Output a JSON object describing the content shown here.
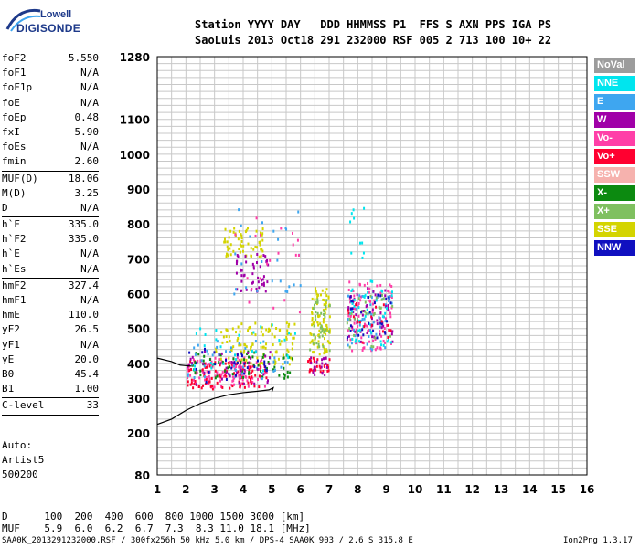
{
  "logo": {
    "line1": "Lowell",
    "line2": "DIGISONDE"
  },
  "header": {
    "line1": "Station YYYY DAY   DDD HHMMSS P1  FFS S AXN PPS IGA PS",
    "line2": "SaoLuis 2013 Oct18 291 232000 RSF 005 2 713 100 10+ 22"
  },
  "params": [
    [
      {
        "k": "foF2",
        "v": "5.550"
      },
      {
        "k": "foF1",
        "v": "N/A"
      },
      {
        "k": "foF1p",
        "v": "N/A"
      },
      {
        "k": "foE",
        "v": "N/A"
      },
      {
        "k": "foEp",
        "v": "0.48"
      },
      {
        "k": "fxI",
        "v": "5.90"
      },
      {
        "k": "foEs",
        "v": "N/A"
      },
      {
        "k": "fmin",
        "v": "2.60"
      }
    ],
    [
      {
        "k": "MUF(D)",
        "v": "18.06"
      },
      {
        "k": "M(D)",
        "v": "3.25"
      },
      {
        "k": "D",
        "v": "N/A"
      }
    ],
    [
      {
        "k": "h`F",
        "v": "335.0"
      },
      {
        "k": "h`F2",
        "v": "335.0"
      },
      {
        "k": "h`E",
        "v": "N/A"
      },
      {
        "k": "h`Es",
        "v": "N/A"
      }
    ],
    [
      {
        "k": "hmF2",
        "v": "327.4"
      },
      {
        "k": "hmF1",
        "v": "N/A"
      },
      {
        "k": "hmE",
        "v": "110.0"
      },
      {
        "k": "yF2",
        "v": "26.5"
      },
      {
        "k": "yF1",
        "v": "N/A"
      },
      {
        "k": "yE",
        "v": "20.0"
      },
      {
        "k": "B0",
        "v": "45.4"
      },
      {
        "k": "B1",
        "v": "1.00"
      }
    ],
    [
      {
        "k": "C-level",
        "v": "33"
      }
    ]
  ],
  "auto": {
    "l1": "Auto:",
    "l2": "Artist5",
    "l3": "500200"
  },
  "muf_table": {
    "row_d": "D      100  200  400  600  800 1000 1500 3000 [km]",
    "row_muf": "MUF    5.9  6.0  6.2  6.7  7.3  8.3 11.0 18.1 [MHz]"
  },
  "footer": {
    "left": "SAA0K_2013291232000.RSF / 300fx256h 50 kHz 5.0 km / DPS-4 SAA0K 903 / 2.6 S 315.8 E",
    "right": "Ion2Png 1.3.17"
  },
  "legend": [
    {
      "label": "NoVal",
      "color": "#9c9c9c"
    },
    {
      "label": "NNE",
      "color": "#00e5ee"
    },
    {
      "label": "E",
      "color": "#3ea6f0"
    },
    {
      "label": "W",
      "color": "#a000a8"
    },
    {
      "label": "Vo-",
      "color": "#ff3fa8"
    },
    {
      "label": "Vo+",
      "color": "#ff0030"
    },
    {
      "label": "SSW",
      "color": "#f6b2ae"
    },
    {
      "label": "X-",
      "color": "#0c8a10"
    },
    {
      "label": "X+",
      "color": "#7fc060"
    },
    {
      "label": "SSE",
      "color": "#d4d400"
    },
    {
      "label": "NNW",
      "color": "#1010c0"
    }
  ],
  "chart_data": {
    "type": "scatter",
    "xlabel": "",
    "ylabel": "",
    "xlim": [
      1,
      16
    ],
    "ylim": [
      80,
      1280
    ],
    "xticks": [
      1,
      2,
      3,
      4,
      5,
      6,
      7,
      8,
      9,
      10,
      11,
      12,
      13,
      14,
      15,
      16
    ],
    "yticks": [
      80,
      200,
      300,
      400,
      500,
      600,
      700,
      800,
      900,
      1000,
      1100,
      1280
    ],
    "grid": true,
    "legend_position": "right",
    "clusters": [
      {
        "series": "Vo-",
        "x": [
          2.0,
          4.8
        ],
        "y": [
          335,
          420
        ],
        "n": 120
      },
      {
        "series": "Vo+",
        "x": [
          2.0,
          4.8
        ],
        "y": [
          330,
          410
        ],
        "n": 90
      },
      {
        "series": "SSE",
        "x": [
          3.0,
          5.8
        ],
        "y": [
          400,
          520
        ],
        "n": 110
      },
      {
        "series": "X-",
        "x": [
          2.2,
          5.8
        ],
        "y": [
          360,
          440
        ],
        "n": 60
      },
      {
        "series": "E",
        "x": [
          2.0,
          5.6
        ],
        "y": [
          360,
          480
        ],
        "n": 40
      },
      {
        "series": "NNE",
        "x": [
          2.2,
          5.8
        ],
        "y": [
          380,
          520
        ],
        "n": 30
      },
      {
        "series": "W",
        "x": [
          2.0,
          5.0
        ],
        "y": [
          340,
          440
        ],
        "n": 40
      },
      {
        "series": "NNW",
        "x": [
          2.0,
          5.0
        ],
        "y": [
          350,
          450
        ],
        "n": 30
      },
      {
        "series": "SSE",
        "x": [
          3.3,
          4.7
        ],
        "y": [
          705,
          795
        ],
        "n": 60
      },
      {
        "series": "W",
        "x": [
          3.7,
          4.9
        ],
        "y": [
          610,
          720
        ],
        "n": 50
      },
      {
        "series": "SSE",
        "x": [
          6.3,
          7.0
        ],
        "y": [
          430,
          620
        ],
        "n": 90
      },
      {
        "series": "X+",
        "x": [
          6.3,
          7.0
        ],
        "y": [
          440,
          600
        ],
        "n": 40
      },
      {
        "series": "Vo+",
        "x": [
          6.2,
          7.0
        ],
        "y": [
          380,
          420
        ],
        "n": 30
      },
      {
        "series": "W",
        "x": [
          6.2,
          7.0
        ],
        "y": [
          370,
          420
        ],
        "n": 20
      },
      {
        "series": "Vo-",
        "x": [
          7.6,
          9.2
        ],
        "y": [
          440,
          640
        ],
        "n": 90
      },
      {
        "series": "E",
        "x": [
          7.6,
          9.2
        ],
        "y": [
          440,
          620
        ],
        "n": 50
      },
      {
        "series": "W",
        "x": [
          7.6,
          9.2
        ],
        "y": [
          450,
          620
        ],
        "n": 50
      },
      {
        "series": "NNE",
        "x": [
          7.6,
          9.2
        ],
        "y": [
          450,
          640
        ],
        "n": 40
      },
      {
        "series": "X+",
        "x": [
          7.6,
          9.2
        ],
        "y": [
          450,
          600
        ],
        "n": 30
      },
      {
        "series": "NNW",
        "x": [
          7.6,
          9.2
        ],
        "y": [
          470,
          600
        ],
        "n": 30
      },
      {
        "series": "Vo+",
        "x": [
          7.6,
          9.2
        ],
        "y": [
          460,
          580
        ],
        "n": 20
      },
      {
        "series": "E",
        "x": [
          3.5,
          6.0
        ],
        "y": [
          600,
          850
        ],
        "n": 25
      },
      {
        "series": "Vo-",
        "x": [
          3.5,
          6.0
        ],
        "y": [
          550,
          830
        ],
        "n": 20
      },
      {
        "series": "NNE",
        "x": [
          7.7,
          8.2
        ],
        "y": [
          700,
          850
        ],
        "n": 10
      }
    ],
    "trace": [
      [
        1.0,
        225
      ],
      [
        1.5,
        240
      ],
      [
        2.0,
        265
      ],
      [
        2.5,
        285
      ],
      [
        3.0,
        300
      ],
      [
        3.5,
        310
      ],
      [
        4.0,
        316
      ],
      [
        4.5,
        320
      ],
      [
        4.9,
        324
      ],
      [
        5.05,
        330
      ],
      [
        5.0,
        318
      ]
    ],
    "trace2": [
      [
        1.0,
        415
      ],
      [
        1.5,
        405
      ],
      [
        1.8,
        395
      ],
      [
        2.2,
        392
      ]
    ]
  }
}
